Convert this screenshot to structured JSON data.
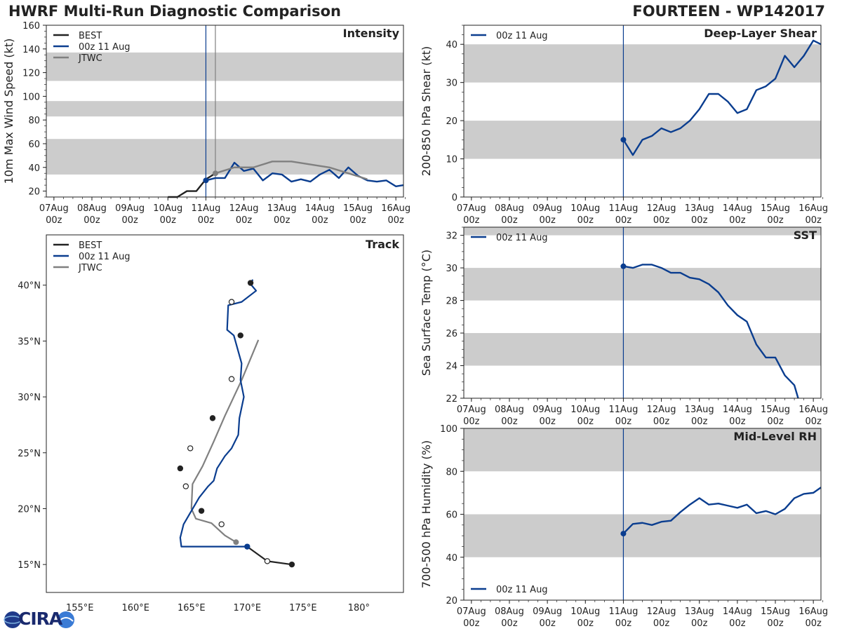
{
  "header": {
    "title_left": "HWRF Multi-Run Diagnostic Comparison",
    "title_right": "FOURTEEN - WP142017"
  },
  "colors": {
    "best": "#222222",
    "hwrf": "#0a3d8f",
    "jtwc": "#808080",
    "band": "#cccccc"
  },
  "time_ticks": [
    "07Aug\n00z",
    "08Aug\n00z",
    "09Aug\n00z",
    "10Aug\n00z",
    "11Aug\n00z",
    "12Aug\n00z",
    "13Aug\n00z",
    "14Aug\n00z",
    "15Aug\n00z",
    "16Aug\n00z"
  ],
  "chart_data": [
    {
      "id": "intensity",
      "type": "line",
      "title": "Intensity",
      "ylabel": "10m Max Wind Speed (kt)",
      "xlim": [
        6.8,
        16.2
      ],
      "ylim": [
        15,
        160
      ],
      "yticks": [
        20,
        40,
        60,
        80,
        100,
        120,
        140,
        160
      ],
      "bands": [
        [
          34,
          64
        ],
        [
          83,
          96
        ],
        [
          113,
          137
        ]
      ],
      "vlines": [
        {
          "x": 11.0,
          "color": "#0a3d8f"
        },
        {
          "x": 11.25,
          "color": "#808080"
        }
      ],
      "legend": [
        "BEST",
        "00z 11 Aug",
        "JTWC"
      ],
      "series": [
        {
          "name": "BEST",
          "x": [
            10.0,
            10.25,
            10.5,
            10.75,
            11.0,
            11.25
          ],
          "y": [
            15,
            15,
            20,
            20,
            30,
            35
          ]
        },
        {
          "name": "00z 11 Aug",
          "x": [
            11.0,
            11.25,
            11.5,
            11.75,
            12.0,
            12.25,
            12.5,
            12.75,
            13.0,
            13.25,
            13.5,
            13.75,
            14.0,
            14.25,
            14.5,
            14.75,
            15.0,
            15.25,
            15.5,
            15.75,
            16.0,
            16.25
          ],
          "y": [
            29,
            31,
            31,
            44,
            37,
            39,
            29,
            35,
            34,
            28,
            30,
            28,
            34,
            38,
            31,
            40,
            33,
            29,
            28,
            29,
            24,
            25
          ],
          "first_marker": true
        },
        {
          "name": "JTWC",
          "x": [
            11.25,
            11.75,
            12.25,
            12.75,
            13.25,
            14.25,
            14.75,
            15.25
          ],
          "y": [
            35,
            40,
            40,
            45,
            45,
            40,
            35,
            30
          ],
          "first_marker": true
        }
      ]
    },
    {
      "id": "shear",
      "type": "line",
      "title": "Deep-Layer Shear",
      "ylabel": "200-850 hPa Shear (kt)",
      "xlim": [
        6.8,
        16.2
      ],
      "ylim": [
        0,
        45
      ],
      "yticks": [
        0,
        10,
        20,
        30,
        40
      ],
      "bands": [
        [
          10,
          20
        ],
        [
          30,
          40
        ]
      ],
      "vlines": [
        {
          "x": 11.0,
          "color": "#0a3d8f"
        }
      ],
      "legend": [
        "00z 11 Aug"
      ],
      "series": [
        {
          "name": "00z 11 Aug",
          "x": [
            11.0,
            11.25,
            11.5,
            11.75,
            12.0,
            12.25,
            12.5,
            12.75,
            13.0,
            13.25,
            13.5,
            13.75,
            14.0,
            14.25,
            14.5,
            14.75,
            15.0,
            15.25,
            15.5,
            15.75,
            16.0,
            16.25
          ],
          "y": [
            15,
            11,
            15,
            16,
            18,
            17,
            18,
            20,
            23,
            27,
            27,
            25,
            22,
            23,
            28,
            29,
            31,
            37,
            34,
            37,
            41,
            40
          ],
          "first_marker": true
        }
      ]
    },
    {
      "id": "sst",
      "type": "line",
      "title": "SST",
      "ylabel": "Sea Surface Temp (°C)",
      "xlim": [
        6.8,
        16.2
      ],
      "ylim": [
        22,
        32.5
      ],
      "yticks": [
        22,
        24,
        26,
        28,
        30,
        32
      ],
      "bands": [
        [
          24,
          26
        ],
        [
          28,
          30
        ],
        [
          32,
          33
        ]
      ],
      "vlines": [
        {
          "x": 11.0,
          "color": "#0a3d8f"
        }
      ],
      "legend": [
        "00z 11 Aug"
      ],
      "series": [
        {
          "name": "00z 11 Aug",
          "x": [
            11.0,
            11.25,
            11.5,
            11.75,
            12.0,
            12.25,
            12.5,
            12.75,
            13.0,
            13.25,
            13.5,
            13.75,
            14.0,
            14.25,
            14.5,
            14.75,
            15.0,
            15.25,
            15.5,
            15.6
          ],
          "y": [
            30.1,
            30.0,
            30.2,
            30.2,
            30.0,
            29.7,
            29.7,
            29.4,
            29.3,
            29.0,
            28.5,
            27.7,
            27.1,
            26.7,
            25.3,
            24.5,
            24.5,
            23.4,
            22.8,
            22.0
          ],
          "first_marker": true
        }
      ]
    },
    {
      "id": "rh",
      "type": "line",
      "title": "Mid-Level RH",
      "ylabel": "700-500 hPa Humidity (%)",
      "xlim": [
        6.8,
        16.2
      ],
      "ylim": [
        20,
        100
      ],
      "yticks": [
        20,
        40,
        60,
        80,
        100
      ],
      "bands": [
        [
          40,
          60
        ],
        [
          80,
          100
        ]
      ],
      "vlines": [
        {
          "x": 11.0,
          "color": "#0a3d8f"
        }
      ],
      "legend": [
        "00z 11 Aug"
      ],
      "legend_position": "bottom-left",
      "series": [
        {
          "name": "00z 11 Aug",
          "x": [
            11.0,
            11.25,
            11.5,
            11.75,
            12.0,
            12.25,
            12.5,
            12.75,
            13.0,
            13.25,
            13.5,
            13.75,
            14.0,
            14.25,
            14.5,
            14.75,
            15.0,
            15.25,
            15.5,
            15.75,
            16.0,
            16.25
          ],
          "y": [
            51,
            55.5,
            56,
            55,
            56.5,
            57,
            61,
            64.5,
            67.5,
            64.5,
            65,
            64,
            63,
            64.5,
            60.5,
            61.5,
            60,
            62.5,
            67.5,
            69.5,
            70,
            72.5
          ],
          "first_marker": true
        }
      ]
    },
    {
      "id": "track",
      "type": "scatter",
      "title": "Track",
      "xlim": [
        152,
        184
      ],
      "ylim": [
        12.5,
        44.5
      ],
      "xticks": [
        155,
        160,
        165,
        170,
        175,
        180
      ],
      "xtick_labels": [
        "155°E",
        "160°E",
        "165°E",
        "170°E",
        "175°E",
        "180°"
      ],
      "yticks": [
        15,
        20,
        25,
        30,
        35,
        40
      ],
      "ytick_labels": [
        "15°N",
        "20°N",
        "25°N",
        "30°N",
        "35°N",
        "40°N"
      ],
      "legend": [
        "BEST",
        "00z 11 Aug",
        "JTWC"
      ],
      "series": [
        {
          "name": "BEST",
          "lon": [
            174.0,
            171.8,
            170.0
          ],
          "lat": [
            15.0,
            15.3,
            16.6
          ],
          "markers": [
            [
              174.0,
              15.0,
              "filled"
            ],
            [
              171.8,
              15.3,
              "open"
            ]
          ]
        },
        {
          "name": "00z 11 Aug",
          "lon": [
            170.5,
            170.3,
            170.8,
            169.5,
            168.3,
            168.2,
            168.8,
            169.5,
            169.4,
            169.7,
            169.3,
            169.2,
            168.6,
            168.0,
            167.3,
            167.0,
            166.5,
            165.7,
            165.0,
            164.3,
            164.0,
            164.1,
            164.5,
            165.2,
            166.0,
            167.0,
            168.5,
            170.0
          ],
          "lat": [
            40.5,
            40.1,
            39.5,
            38.5,
            38.2,
            36.0,
            35.5,
            33.0,
            31.5,
            30.0,
            28.1,
            26.6,
            25.4,
            24.7,
            23.6,
            22.5,
            22.0,
            21.0,
            19.8,
            18.6,
            17.4,
            16.6,
            16.6,
            16.6,
            16.6,
            16.6,
            16.6,
            16.6
          ],
          "markers_lon": [
            170.3,
            168.6,
            169.4,
            168.6,
            166.9,
            164.9,
            164.0,
            164.5,
            165.9,
            167.7,
            170.0
          ],
          "markers_lat": [
            40.2,
            38.5,
            35.5,
            31.6,
            28.1,
            25.4,
            23.6,
            22.0,
            19.8,
            18.6,
            16.6
          ],
          "markers_style": [
            "filled",
            "open",
            "filled",
            "open",
            "filled",
            "open",
            "filled",
            "open",
            "filled",
            "open",
            "filled"
          ]
        },
        {
          "name": "JTWC",
          "lon": [
            171.0,
            169.5,
            168.0,
            167.0,
            166.0,
            165.1,
            165.0,
            165.4,
            166.8,
            168.0,
            169.0
          ],
          "lat": [
            35.1,
            31.5,
            28.3,
            26.0,
            23.8,
            22.2,
            20.0,
            19.1,
            18.7,
            17.6,
            17.0
          ],
          "markers": [
            [
              169.0,
              17.0,
              "filled"
            ]
          ]
        }
      ]
    }
  ],
  "logo": {
    "text": "CIRA"
  }
}
